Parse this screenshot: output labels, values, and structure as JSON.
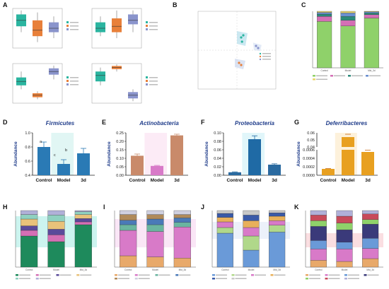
{
  "panels": {
    "A": "A",
    "B": "B",
    "C": "C",
    "D": "D",
    "E": "E",
    "F": "F",
    "G": "G",
    "H": "H",
    "I": "I",
    "J": "J",
    "K": "K"
  },
  "colors": {
    "control": "#d98a74",
    "model": "#1f77b4",
    "d3": "#c8a0c8",
    "teal": "#2bb5a0",
    "orange": "#e8803a",
    "lavender": "#8a94cc",
    "green_bar": "#8fd16a"
  },
  "chart_data": [
    {
      "panel": "D",
      "type": "bar",
      "title": "Firmicutes",
      "categories": [
        "Control",
        "Model",
        "3d"
      ],
      "values": [
        0.8,
        0.56,
        0.71
      ],
      "errors": [
        0.07,
        0.06,
        0.07
      ],
      "ylabel": "Abundance",
      "ylim": [
        0.4,
        1.0
      ],
      "yticks": [
        "0.4",
        "0.6",
        "0.8",
        "1.0"
      ],
      "annotations": [
        "a",
        "b",
        "c"
      ]
    },
    {
      "panel": "E",
      "type": "bar",
      "title": "Actinobacteria",
      "categories": [
        "Control",
        "Model",
        "3d"
      ],
      "values": [
        0.115,
        0.055,
        0.235
      ],
      "errors": [
        0.01,
        0.003,
        0.007
      ],
      "ylabel": "Abundance",
      "ylim": [
        0.0,
        0.25
      ],
      "yticks": [
        "0.00",
        "0.05",
        "0.10",
        "0.15",
        "0.20",
        "0.25"
      ]
    },
    {
      "panel": "F",
      "type": "bar",
      "title": "Proteobacteria",
      "categories": [
        "Control",
        "Model",
        "3d"
      ],
      "values": [
        0.007,
        0.085,
        0.025
      ],
      "errors": [
        0.001,
        0.008,
        0.002
      ],
      "ylabel": "Abundance",
      "ylim": [
        0.0,
        0.1
      ],
      "yticks": [
        "0.00",
        "0.02",
        "0.04",
        "0.06",
        "0.08",
        "0.10"
      ]
    },
    {
      "panel": "G",
      "type": "bar",
      "title": "Deferribacteres",
      "categories": [
        "Control",
        "Model",
        "3d"
      ],
      "values": [
        0.00015,
        0.054,
        0.00055
      ],
      "errors": [
        1e-05,
        0.004,
        4e-05
      ],
      "ylabel": "Abundance",
      "yticks_low": [
        "0.0000",
        "0.0002",
        "0.0004",
        "0.0006"
      ],
      "yticks_high": [
        "0.04",
        "0.05",
        "0.06"
      ]
    },
    {
      "panel": "C",
      "type": "bar",
      "stacked": true,
      "categories": [
        "Control",
        "Model",
        "Mid_3d"
      ],
      "series": [
        {
          "color": "#8fd16a",
          "values": [
            0.82,
            0.74,
            0.88
          ]
        },
        {
          "color": "#d46fb5",
          "values": [
            0.09,
            0.1,
            0.06
          ]
        },
        {
          "color": "#2b8a7a",
          "values": [
            0.04,
            0.07,
            0.03
          ]
        },
        {
          "color": "#6a8fd0",
          "values": [
            0.03,
            0.06,
            0.02
          ]
        },
        {
          "color": "#e8d56a",
          "values": [
            0.02,
            0.03,
            0.01
          ]
        }
      ]
    },
    {
      "panel": "H",
      "type": "bar",
      "stacked": true,
      "categories": [
        "Control",
        "Model",
        "Mid_3d"
      ],
      "series": [
        {
          "color": "#1e8a5c",
          "values": [
            0.55,
            0.45,
            0.75
          ]
        },
        {
          "color": "#d46fb5",
          "values": [
            0.1,
            0.12,
            0.05
          ]
        },
        {
          "color": "#5a4a9a",
          "values": [
            0.08,
            0.1,
            0.06
          ]
        },
        {
          "color": "#e8c27a",
          "values": [
            0.12,
            0.14,
            0.07
          ]
        },
        {
          "color": "#8fd1c0",
          "values": [
            0.08,
            0.11,
            0.05
          ]
        },
        {
          "color": "#b0b0d8",
          "values": [
            0.07,
            0.08,
            0.02
          ]
        }
      ]
    },
    {
      "panel": "I",
      "type": "bar",
      "stacked": true,
      "categories": [
        "Control",
        "Model",
        "Mid_3d"
      ],
      "series": [
        {
          "color": "#e8a96a",
          "values": [
            0.2,
            0.18,
            0.16
          ]
        },
        {
          "color": "#d87ac8",
          "values": [
            0.45,
            0.45,
            0.55
          ]
        },
        {
          "color": "#6ab5a0",
          "values": [
            0.1,
            0.12,
            0.08
          ]
        },
        {
          "color": "#4a7ab8",
          "values": [
            0.08,
            0.1,
            0.08
          ]
        },
        {
          "color": "#b08a5a",
          "values": [
            0.1,
            0.08,
            0.06
          ]
        },
        {
          "color": "#d0d0e0",
          "values": [
            0.07,
            0.07,
            0.07
          ]
        }
      ]
    },
    {
      "panel": "J",
      "type": "bar",
      "stacked": true,
      "categories": [
        "Control",
        "Model",
        "Mid_3d"
      ],
      "series": [
        {
          "color": "#6a9ad8",
          "values": [
            0.6,
            0.3,
            0.62
          ]
        },
        {
          "color": "#b0d88a",
          "values": [
            0.1,
            0.25,
            0.12
          ]
        },
        {
          "color": "#d87ac8",
          "values": [
            0.1,
            0.15,
            0.08
          ]
        },
        {
          "color": "#e8b05a",
          "values": [
            0.08,
            0.12,
            0.08
          ]
        },
        {
          "color": "#3a5aa8",
          "values": [
            0.07,
            0.1,
            0.06
          ]
        },
        {
          "color": "#c8c8c8",
          "values": [
            0.05,
            0.08,
            0.04
          ]
        }
      ]
    },
    {
      "panel": "K",
      "type": "bar",
      "stacked": true,
      "categories": [
        "Control",
        "Model",
        "Mid_3d"
      ],
      "series": [
        {
          "color": "#e8a96a",
          "values": [
            0.12,
            0.1,
            0.15
          ]
        },
        {
          "color": "#d87ac8",
          "values": [
            0.2,
            0.22,
            0.18
          ]
        },
        {
          "color": "#6a9ad8",
          "values": [
            0.15,
            0.12,
            0.18
          ]
        },
        {
          "color": "#3a3a7a",
          "values": [
            0.25,
            0.22,
            0.25
          ]
        },
        {
          "color": "#8fd16a",
          "values": [
            0.1,
            0.12,
            0.08
          ]
        },
        {
          "color": "#c84a5a",
          "values": [
            0.1,
            0.12,
            0.1
          ]
        },
        {
          "color": "#b0b0d8",
          "values": [
            0.08,
            0.1,
            0.06
          ]
        }
      ]
    },
    {
      "panel": "A",
      "type": "boxplot",
      "subplots": [
        {
          "groups": [
            {
              "color": "#2bb5a0",
              "median": 0.7,
              "q1": 0.55,
              "q3": 0.85,
              "min": 0.4,
              "max": 0.95
            },
            {
              "color": "#e8803a",
              "median": 0.45,
              "q1": 0.3,
              "q3": 0.7,
              "min": 0.15,
              "max": 0.9
            },
            {
              "color": "#8a94cc",
              "median": 0.5,
              "q1": 0.4,
              "q3": 0.65,
              "min": 0.25,
              "max": 0.8
            }
          ]
        },
        {
          "groups": [
            {
              "color": "#2bb5a0",
              "median": 0.5,
              "q1": 0.4,
              "q3": 0.65,
              "min": 0.3,
              "max": 0.8
            },
            {
              "color": "#e8803a",
              "median": 0.55,
              "q1": 0.4,
              "q3": 0.75,
              "min": 0.25,
              "max": 0.95
            },
            {
              "color": "#8a94cc",
              "median": 0.7,
              "q1": 0.6,
              "q3": 0.85,
              "min": 0.4,
              "max": 0.95
            }
          ]
        },
        {
          "groups": [
            {
              "color": "#2bb5a0",
              "median": 0.55,
              "q1": 0.45,
              "q3": 0.65,
              "min": 0.35,
              "max": 0.8
            },
            {
              "color": "#e8803a",
              "median": 0.2,
              "q1": 0.15,
              "q3": 0.25,
              "min": 0.1,
              "max": 0.3
            },
            {
              "color": "#8a94cc",
              "median": 0.8,
              "q1": 0.72,
              "q3": 0.88,
              "min": 0.6,
              "max": 0.95
            }
          ]
        },
        {
          "groups": [
            {
              "color": "#2bb5a0",
              "median": 0.7,
              "q1": 0.55,
              "q3": 0.8,
              "min": 0.45,
              "max": 0.9
            },
            {
              "color": "#e8803a",
              "median": 0.9,
              "q1": 0.86,
              "q3": 0.94,
              "min": 0.8,
              "max": 0.98
            },
            {
              "color": "#8a94cc",
              "median": 0.2,
              "q1": 0.12,
              "q3": 0.28,
              "min": 0.05,
              "max": 0.35
            }
          ]
        }
      ]
    },
    {
      "panel": "B",
      "type": "scatter",
      "points": [
        {
          "x": 0.1,
          "y": 0.3,
          "color": "#2bb5a0"
        },
        {
          "x": 0.15,
          "y": 0.35,
          "color": "#2bb5a0"
        },
        {
          "x": 0.12,
          "y": 0.2,
          "color": "#2bb5a0"
        },
        {
          "x": 0.05,
          "y": -0.3,
          "color": "#e8803a"
        },
        {
          "x": 0.1,
          "y": -0.35,
          "color": "#e8803a"
        },
        {
          "x": 0.45,
          "y": 0.1,
          "color": "#8a94cc"
        },
        {
          "x": 0.5,
          "y": 0.05,
          "color": "#8a94cc"
        }
      ]
    }
  ]
}
